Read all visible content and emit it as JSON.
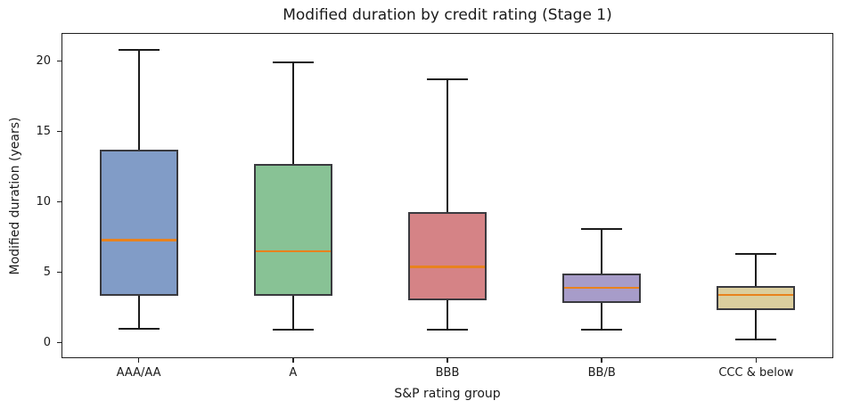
{
  "chart_data": {
    "type": "boxplot",
    "title": "Modified duration by credit rating (Stage 1)",
    "xlabel": "S&P rating group",
    "ylabel": "Modified duration (years)",
    "categories": [
      "AAA/AA",
      "A",
      "BBB",
      "BB/B",
      "CCC & below"
    ],
    "series": [
      {
        "name": "AAA/AA",
        "whisker_low": 1.0,
        "q1": 3.3,
        "median": 7.3,
        "q3": 13.7,
        "whisker_high": 20.8,
        "fill_color": "#819cc7"
      },
      {
        "name": "A",
        "whisker_low": 0.9,
        "q1": 3.3,
        "median": 6.5,
        "q3": 12.7,
        "whisker_high": 19.9,
        "fill_color": "#88c295"
      },
      {
        "name": "BBB",
        "whisker_low": 0.9,
        "q1": 3.0,
        "median": 5.4,
        "q3": 9.3,
        "whisker_high": 18.7,
        "fill_color": "#d58386"
      },
      {
        "name": "BB/B",
        "whisker_low": 0.9,
        "q1": 2.8,
        "median": 3.9,
        "q3": 4.9,
        "whisker_high": 8.1,
        "fill_color": "#a79cc9"
      },
      {
        "name": "CCC & below",
        "whisker_low": 0.2,
        "q1": 2.3,
        "median": 3.4,
        "q3": 4.0,
        "whisker_high": 6.3,
        "fill_color": "#dbce9e"
      }
    ],
    "yticks": [
      0,
      5,
      10,
      15,
      20
    ],
    "ylim": [
      -1.1,
      22.0
    ],
    "grid": false,
    "legend": "none",
    "colors": {
      "median": "#e8821e",
      "box_edge": "#3a3a3f",
      "whisker": "#1c1c1c",
      "text": "#1a1a1a",
      "background": "#ffffff"
    }
  }
}
